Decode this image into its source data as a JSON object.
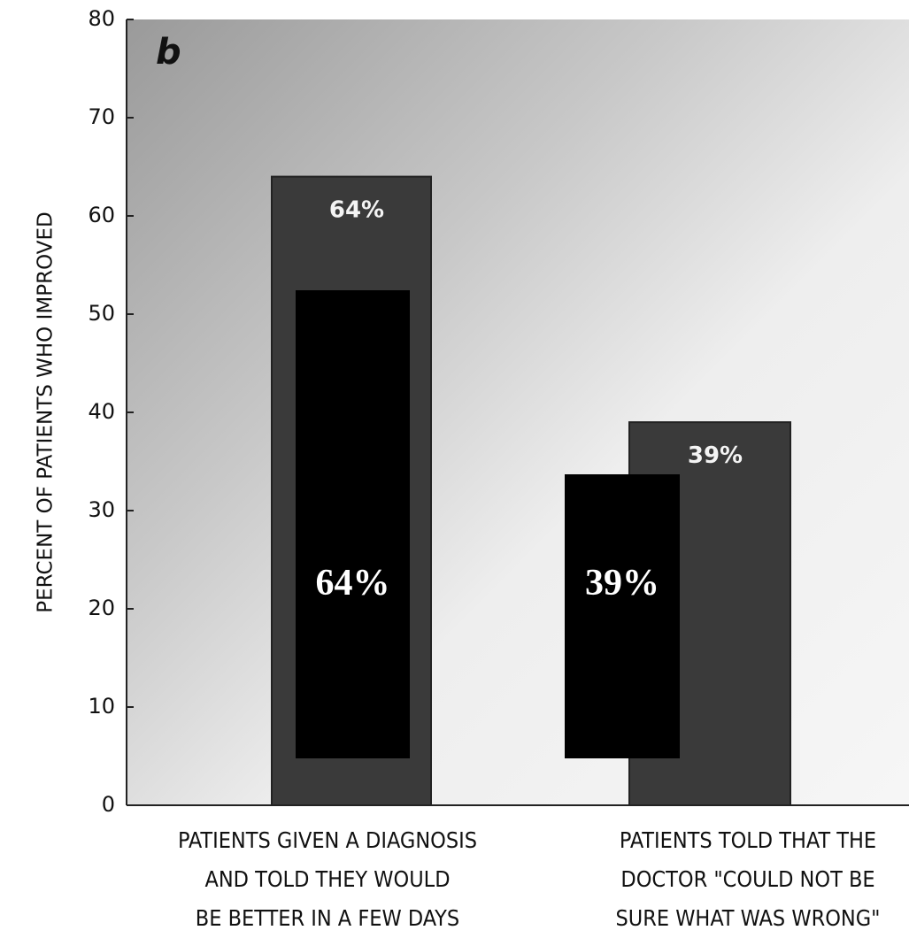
{
  "chart_data": {
    "type": "bar",
    "panel_label": "b",
    "ylabel": "PERCENT OF PATIENTS WHO IMPROVED",
    "categories": [
      "PATIENTS GIVEN A DIAGNOSIS\nAND TOLD THEY WOULD\nBE BETTER IN A FEW DAYS",
      "PATIENTS TOLD THAT THE\nDOCTOR \"COULD NOT BE\nSURE WHAT WAS WRONG\""
    ],
    "values": [
      64,
      39
    ],
    "value_labels": [
      "64%",
      "39%"
    ],
    "color": "#3a3a3a",
    "ylim": [
      0,
      80
    ],
    "yticks": [
      0,
      10,
      20,
      30,
      40,
      50,
      60,
      70,
      80
    ]
  }
}
